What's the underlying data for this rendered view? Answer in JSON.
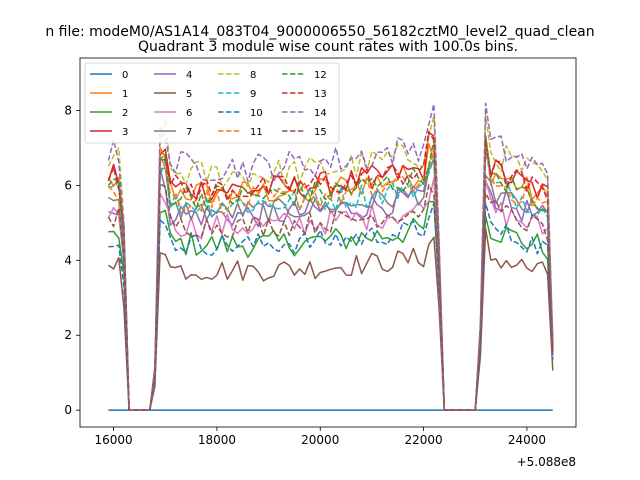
{
  "figure": {
    "suptitle": "n file: modeM0/AS1A14_083T04_9000006550_56182cztM0_level2_quad_clean",
    "offset_label": "+5.088e8"
  },
  "chart_data": {
    "type": "line",
    "title": "Quadrant 3 module wise count rates with 100.0s bins.",
    "xlabel": "",
    "ylabel": "",
    "xlim": [
      15350,
      24950
    ],
    "ylim": [
      -0.45,
      9.4
    ],
    "x_offset": 508800000,
    "x_ticks": [
      16000,
      18000,
      20000,
      22000,
      24000
    ],
    "x_tick_labels": [
      "16000",
      "18000",
      "20000",
      "22000",
      "24000"
    ],
    "y_ticks": [
      0,
      2,
      4,
      6,
      8
    ],
    "y_tick_labels": [
      "0",
      "2",
      "4",
      "6",
      "8"
    ],
    "grid": false,
    "legend_position": "upper-left",
    "legend_columns": 4,
    "series": [
      {
        "name": "0",
        "color": "#1f77b4",
        "dash": "solid",
        "base": 0.0,
        "amp": 0.0
      },
      {
        "name": "1",
        "color": "#ff7f0e",
        "dash": "solid",
        "base": 5.9,
        "amp": 0.35
      },
      {
        "name": "2",
        "color": "#2ca02c",
        "dash": "solid",
        "base": 4.5,
        "amp": 0.35
      },
      {
        "name": "3",
        "color": "#d62728",
        "dash": "solid",
        "base": 6.0,
        "amp": 0.35
      },
      {
        "name": "4",
        "color": "#9467bd",
        "dash": "solid",
        "base": 5.3,
        "amp": 0.35
      },
      {
        "name": "5",
        "color": "#8c564b",
        "dash": "solid",
        "base": 3.8,
        "amp": 0.3
      },
      {
        "name": "6",
        "color": "#e377c2",
        "dash": "solid",
        "base": 5.0,
        "amp": 0.35
      },
      {
        "name": "7",
        "color": "#7f7f7f",
        "dash": "solid",
        "base": 5.4,
        "amp": 0.3
      },
      {
        "name": "8",
        "color": "#bcbd22",
        "dash": "dashed",
        "base": 6.4,
        "amp": 0.4
      },
      {
        "name": "9",
        "color": "#17becf",
        "dash": "dashed",
        "base": 5.6,
        "amp": 0.35
      },
      {
        "name": "10",
        "color": "#1f77b4",
        "dash": "dashed",
        "base": 4.5,
        "amp": 0.3
      },
      {
        "name": "11",
        "color": "#ff7f0e",
        "dash": "dashed",
        "base": 5.7,
        "amp": 0.35
      },
      {
        "name": "12",
        "color": "#2ca02c",
        "dash": "dashed",
        "base": 5.8,
        "amp": 0.35
      },
      {
        "name": "13",
        "color": "#d62728",
        "dash": "dashed",
        "base": 6.0,
        "amp": 0.35
      },
      {
        "name": "14",
        "color": "#9467bd",
        "dash": "dashed",
        "base": 6.6,
        "amp": 0.4
      },
      {
        "name": "15",
        "color": "#8c564b",
        "dash": "dashed",
        "base": 5.0,
        "amp": 0.3
      }
    ],
    "time_profile": {
      "start": 15900,
      "end": 24500,
      "step": 100,
      "gap1": [
        16300,
        16700
      ],
      "gap2": [
        22400,
        23000
      ]
    }
  }
}
